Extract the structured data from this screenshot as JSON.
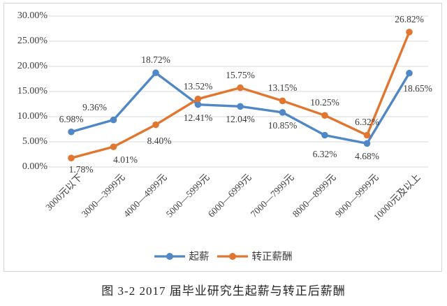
{
  "figure_caption": "图 3-2  2017 届毕业研究生起薪与转正后薪酬",
  "colors": {
    "grid": "#d9d9d9",
    "box_border": "#d6d6d6",
    "text": "#3f3f3f"
  },
  "chart_data": {
    "type": "line",
    "title": "",
    "xlabel": "",
    "ylabel": "",
    "categories": [
      "3000元以下",
      "3000—3999元",
      "4000—4999元",
      "5000—5999元",
      "6000—6999元",
      "7000—7999元",
      "8000—8999元",
      "9000—9999元",
      "10000元及以上"
    ],
    "series": [
      {
        "name": "起薪",
        "color": "#5087C5",
        "values": [
          6.98,
          9.36,
          18.72,
          12.41,
          12.04,
          10.85,
          6.32,
          4.68,
          18.65
        ]
      },
      {
        "name": "转正薪酬",
        "color": "#E0762F",
        "values": [
          1.78,
          4.01,
          8.4,
          13.52,
          15.75,
          13.15,
          10.25,
          6.32,
          26.82
        ]
      }
    ],
    "ylim": [
      0,
      30
    ],
    "ytick_step": 5,
    "ytick_labels": [
      "0.00%",
      "5.00%",
      "10.00%",
      "15.00%",
      "20.00%",
      "25.00%",
      "30.00%"
    ],
    "grid": true,
    "data_labels": true,
    "data_label_format": "0.00%",
    "legend_position": "bottom"
  }
}
